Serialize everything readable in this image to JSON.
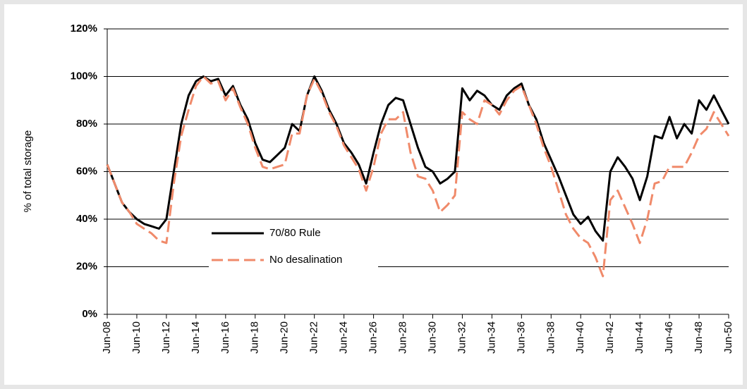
{
  "chart_data": {
    "type": "line",
    "y_label": "% of total storage",
    "categories": [
      "Jun-08",
      null,
      null,
      null,
      "Jun-10",
      null,
      null,
      null,
      "Jun-12",
      null,
      null,
      null,
      "Jun-14",
      null,
      null,
      null,
      "Jun-16",
      null,
      null,
      null,
      "Jun-18",
      null,
      null,
      null,
      "Jun-20",
      null,
      null,
      null,
      "Jun-22",
      null,
      null,
      null,
      "Jun-24",
      null,
      null,
      null,
      "Jun-26",
      null,
      null,
      null,
      "Jun-28",
      null,
      null,
      null,
      "Jun-30",
      null,
      null,
      null,
      "Jun-32",
      null,
      null,
      null,
      "Jun-34",
      null,
      null,
      null,
      "Jun-36",
      null,
      null,
      null,
      "Jun-38",
      null,
      null,
      null,
      "Jun-40",
      null,
      null,
      null,
      "Jun-42",
      null,
      null,
      null,
      "Jun-44",
      null,
      null,
      null,
      "Jun-46",
      null,
      null,
      null,
      "Jun-48",
      null,
      null,
      null,
      "Jun-50"
    ],
    "series": [
      {
        "name": "70/80 Rule",
        "color": "#000000",
        "dash": false,
        "values": [
          63,
          55,
          47,
          43,
          40,
          38,
          37,
          36,
          40,
          60,
          80,
          92,
          98,
          100,
          98,
          99,
          92,
          96,
          88,
          82,
          72,
          65,
          64,
          67,
          70,
          80,
          77,
          92,
          100,
          94,
          86,
          80,
          72,
          68,
          63,
          55,
          68,
          80,
          88,
          91,
          90,
          80,
          70,
          62,
          60,
          55,
          57,
          60,
          95,
          90,
          94,
          92,
          88,
          86,
          92,
          95,
          97,
          88,
          82,
          72,
          65,
          58,
          50,
          42,
          38,
          41,
          35,
          31,
          60,
          66,
          62,
          57,
          48,
          58,
          75,
          74,
          83,
          74,
          80,
          76,
          90,
          86,
          92,
          86,
          80
        ]
      },
      {
        "name": "No desalination",
        "color": "#f08a6a",
        "dash": true,
        "values": [
          63,
          55,
          47,
          43,
          38,
          36,
          34,
          31,
          30,
          55,
          75,
          86,
          96,
          100,
          97,
          98,
          90,
          95,
          87,
          80,
          70,
          62,
          61,
          62,
          63,
          76,
          76,
          92,
          99,
          93,
          85,
          79,
          71,
          66,
          61,
          52,
          62,
          76,
          82,
          82,
          85,
          68,
          58,
          57,
          52,
          43,
          46,
          50,
          85,
          82,
          80,
          90,
          88,
          84,
          90,
          94,
          96,
          88,
          80,
          70,
          62,
          52,
          42,
          36,
          32,
          30,
          24,
          16,
          48,
          52,
          45,
          38,
          30,
          40,
          55,
          56,
          62,
          62,
          62,
          68,
          75,
          78,
          85,
          80,
          75
        ]
      }
    ],
    "ylim": [
      0,
      120
    ],
    "yticks": [
      {
        "value": 0,
        "label": "0%"
      },
      {
        "value": 20,
        "label": "20%"
      },
      {
        "value": 40,
        "label": "40%"
      },
      {
        "value": 60,
        "label": "60%"
      },
      {
        "value": 80,
        "label": "80%"
      },
      {
        "value": 100,
        "label": "100%"
      },
      {
        "value": 120,
        "label": "120%"
      }
    ],
    "grid": true,
    "legend": "bottom-left"
  }
}
